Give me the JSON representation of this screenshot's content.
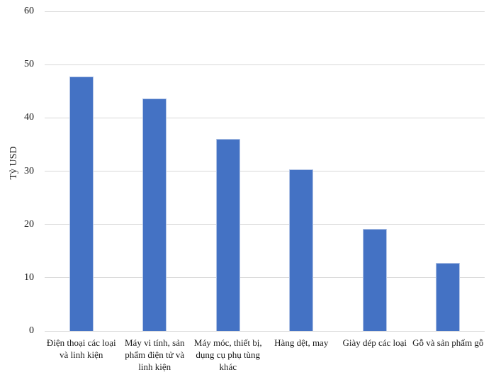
{
  "chart_data": {
    "type": "bar",
    "categories": [
      "Điện thoại các loại và linh kiện",
      "Máy vi tính, sản phẩm điện tử và linh kiện",
      "Máy móc, thiết bị, dụng cụ phụ tùng khác",
      "Hàng dệt, may",
      "Giày dép các loại",
      "Gỗ và sản phẩm gỗ"
    ],
    "values": [
      47.7,
      43.6,
      36.0,
      30.3,
      19.1,
      12.8
    ],
    "ylabel": "Tỷ USD",
    "ylim": [
      0,
      60
    ],
    "ytick_interval": 10,
    "ytick_labels": [
      "0",
      "10",
      "20",
      "30",
      "40",
      "50",
      "60"
    ],
    "grid": true,
    "legend": false,
    "bar_color": "#4472c4",
    "bar_border_color": "#b3c5e6",
    "gridline_color": "#d9d9d9",
    "text_color": "#1a1a1a"
  }
}
